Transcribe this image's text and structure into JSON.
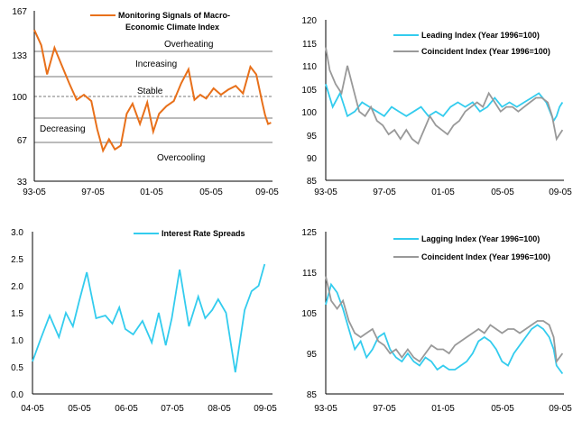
{
  "charts": [
    {
      "id": "signals",
      "legend": [
        "Monitoring Signals of Macro-",
        "Economic Climate Index"
      ],
      "y_ticks": [
        "167",
        "133",
        "100",
        "67",
        "33"
      ],
      "x_ticks": [
        "93-05",
        "97-05",
        "01-05",
        "05-05",
        "09-05"
      ],
      "zones": [
        {
          "label": "Overheating",
          "color": "#cc0000"
        },
        {
          "label": "Increasing",
          "color": "#e6a020"
        },
        {
          "label": "Stable",
          "color": "#2e8b57"
        },
        {
          "label": "Decreasing",
          "color": "#1ab0d0"
        },
        {
          "label": "Overcooling",
          "color": "#000099"
        }
      ]
    },
    {
      "id": "leading",
      "legend": [
        "Leading Index (Year 1996=100)",
        "Coincident Index (Year 1996=100)"
      ],
      "y_ticks": [
        "120",
        "115",
        "110",
        "105",
        "100",
        "95",
        "90",
        "85"
      ],
      "x_ticks": [
        "93-05",
        "97-05",
        "01-05",
        "05-05",
        "09-05"
      ]
    },
    {
      "id": "spreads",
      "legend": [
        "Interest Rate Spreads"
      ],
      "y_ticks": [
        "3.0",
        "2.5",
        "2.0",
        "1.5",
        "1.0",
        "0.5",
        "0.0"
      ],
      "x_ticks": [
        "04-05",
        "05-05",
        "06-05",
        "07-05",
        "08-05",
        "09-05"
      ]
    },
    {
      "id": "lagging",
      "legend": [
        "Lagging Index (Year 1996=100)",
        "Coincident Index (Year 1996=100)"
      ],
      "y_ticks": [
        "125",
        "115",
        "105",
        "95",
        "85"
      ],
      "x_ticks": [
        "93-05",
        "97-05",
        "01-05",
        "05-05",
        "09-05"
      ]
    }
  ],
  "chart_data": [
    {
      "type": "line",
      "x_range": [
        "93-05",
        "09-05"
      ],
      "ylim": [
        33,
        167
      ],
      "zone_thresholds": [
        137,
        117,
        107,
        92,
        62
      ],
      "series": [
        {
          "name": "Monitoring Signals of Macro-Economic Climate Index",
          "color": "#e8701a",
          "x": [
            1993.33,
            1993.8,
            1994.2,
            1994.7,
            1995.2,
            1995.7,
            1996.2,
            1996.7,
            1997.2,
            1997.6,
            1998.0,
            1998.4,
            1998.8,
            1999.2,
            1999.6,
            2000.0,
            2000.5,
            2001.0,
            2001.4,
            2001.8,
            2002.3,
            2002.8,
            2003.3,
            2003.8,
            2004.2,
            2004.6,
            2005.0,
            2005.5,
            2006.0,
            2006.5,
            2007.0,
            2007.5,
            2008.0,
            2008.4,
            2008.8,
            2009.0,
            2009.2,
            2009.4
          ],
          "values": [
            152,
            140,
            117,
            138,
            124,
            110,
            97,
            101,
            96,
            74,
            57,
            66,
            58,
            61,
            86,
            94,
            78,
            95,
            72,
            86,
            92,
            96,
            110,
            121,
            97,
            101,
            98,
            106,
            101,
            105,
            108,
            102,
            123,
            117,
            95,
            85,
            78,
            79
          ]
        }
      ]
    },
    {
      "type": "line",
      "x_range": [
        "93-05",
        "09-05"
      ],
      "ylim": [
        85,
        120
      ],
      "series": [
        {
          "name": "Leading Index (Year 1996=100)",
          "color": "#33ccee",
          "x": [
            1993.33,
            1993.8,
            1994.3,
            1994.8,
            1995.3,
            1995.8,
            1996.3,
            1996.8,
            1997.3,
            1997.8,
            1998.3,
            1998.8,
            1999.3,
            1999.8,
            2000.3,
            2000.8,
            2001.3,
            2001.8,
            2002.3,
            2002.8,
            2003.3,
            2003.8,
            2004.3,
            2004.8,
            2005.3,
            2005.8,
            2006.3,
            2006.8,
            2007.3,
            2007.8,
            2008.3,
            2008.8,
            2009.0,
            2009.2,
            2009.4
          ],
          "values": [
            106,
            101,
            104,
            99,
            100,
            102,
            101,
            100,
            99,
            101,
            100,
            99,
            100,
            101,
            99,
            100,
            99,
            101,
            102,
            101,
            102,
            100,
            101,
            103,
            101,
            102,
            101,
            102,
            103,
            104,
            102,
            98,
            99,
            101,
            102
          ]
        },
        {
          "name": "Coincident Index (Year 1996=100)",
          "color": "#999999",
          "x": [
            1993.33,
            1993.6,
            1994.0,
            1994.4,
            1994.8,
            1995.2,
            1995.6,
            1996.0,
            1996.4,
            1996.8,
            1997.2,
            1997.6,
            1998.0,
            1998.4,
            1998.8,
            1999.2,
            1999.6,
            2000.0,
            2000.4,
            2000.8,
            2001.2,
            2001.6,
            2002.0,
            2002.4,
            2002.8,
            2003.2,
            2003.6,
            2004.0,
            2004.4,
            2004.8,
            2005.2,
            2005.6,
            2006.0,
            2006.4,
            2006.8,
            2007.2,
            2007.6,
            2008.0,
            2008.4,
            2008.7,
            2009.0,
            2009.2,
            2009.4
          ],
          "values": [
            114,
            109,
            106,
            104,
            110,
            105,
            100,
            99,
            101,
            98,
            97,
            95,
            96,
            94,
            96,
            94,
            93,
            96,
            99,
            97,
            96,
            95,
            97,
            98,
            100,
            101,
            102,
            101,
            104,
            102,
            100,
            101,
            101,
            100,
            101,
            102,
            103,
            103,
            102,
            99,
            94,
            95,
            96
          ]
        }
      ]
    },
    {
      "type": "line",
      "x_range": [
        "04-05",
        "09-05"
      ],
      "ylim": [
        0,
        3
      ],
      "series": [
        {
          "name": "Interest Rate Spreads",
          "color": "#33ccee",
          "x": [
            2004.33,
            2004.5,
            2004.7,
            2004.9,
            2005.05,
            2005.2,
            2005.33,
            2005.5,
            2005.7,
            2005.9,
            2006.05,
            2006.2,
            2006.33,
            2006.5,
            2006.7,
            2006.9,
            2007.05,
            2007.2,
            2007.33,
            2007.5,
            2007.7,
            2007.9,
            2008.05,
            2008.2,
            2008.33,
            2008.5,
            2008.7,
            2008.9,
            2009.05,
            2009.2,
            2009.33
          ],
          "values": [
            0.6,
            1.0,
            1.45,
            1.05,
            1.5,
            1.25,
            1.7,
            2.25,
            1.4,
            1.45,
            1.3,
            1.6,
            1.2,
            1.1,
            1.35,
            0.95,
            1.5,
            0.9,
            1.4,
            2.3,
            1.25,
            1.8,
            1.4,
            1.55,
            1.75,
            1.5,
            0.4,
            1.55,
            1.9,
            2.0,
            2.4
          ]
        }
      ]
    },
    {
      "type": "line",
      "x_range": [
        "93-05",
        "09-05"
      ],
      "ylim": [
        85,
        125
      ],
      "series": [
        {
          "name": "Lagging Index (Year 1996=100)",
          "color": "#33ccee",
          "x": [
            1993.33,
            1993.7,
            1994.1,
            1994.5,
            1994.9,
            1995.3,
            1995.7,
            1996.1,
            1996.5,
            1996.9,
            1997.3,
            1997.7,
            1998.1,
            1998.5,
            1998.9,
            1999.3,
            1999.7,
            2000.1,
            2000.5,
            2000.9,
            2001.3,
            2001.7,
            2002.1,
            2002.5,
            2002.9,
            2003.3,
            2003.7,
            2004.1,
            2004.5,
            2004.9,
            2005.3,
            2005.7,
            2006.1,
            2006.5,
            2006.9,
            2007.3,
            2007.7,
            2008.1,
            2008.5,
            2008.8,
            2009.0,
            2009.2,
            2009.4
          ],
          "values": [
            107,
            112,
            110,
            106,
            101,
            96,
            98,
            94,
            96,
            99,
            100,
            96,
            94,
            93,
            95,
            93,
            92,
            94,
            93,
            91,
            92,
            91,
            91,
            92,
            93,
            95,
            98,
            99,
            98,
            96,
            93,
            92,
            95,
            97,
            99,
            101,
            102,
            101,
            99,
            96,
            92,
            91,
            90
          ]
        },
        {
          "name": "Coincident Index (Year 1996=100)",
          "color": "#999999",
          "x": [
            1993.33,
            1993.7,
            1994.1,
            1994.5,
            1994.9,
            1995.3,
            1995.7,
            1996.1,
            1996.5,
            1996.9,
            1997.3,
            1997.7,
            1998.1,
            1998.5,
            1998.9,
            1999.3,
            1999.7,
            2000.1,
            2000.5,
            2000.9,
            2001.3,
            2001.7,
            2002.1,
            2002.5,
            2002.9,
            2003.3,
            2003.7,
            2004.1,
            2004.5,
            2004.9,
            2005.3,
            2005.7,
            2006.1,
            2006.5,
            2006.9,
            2007.3,
            2007.7,
            2008.1,
            2008.5,
            2008.8,
            2009.0,
            2009.2,
            2009.4
          ],
          "values": [
            114,
            108,
            106,
            108,
            103,
            100,
            99,
            100,
            101,
            98,
            97,
            95,
            96,
            94,
            96,
            94,
            93,
            95,
            97,
            96,
            96,
            95,
            97,
            98,
            99,
            100,
            101,
            100,
            102,
            101,
            100,
            101,
            101,
            100,
            101,
            102,
            103,
            103,
            102,
            99,
            93,
            94,
            95
          ]
        }
      ]
    }
  ]
}
